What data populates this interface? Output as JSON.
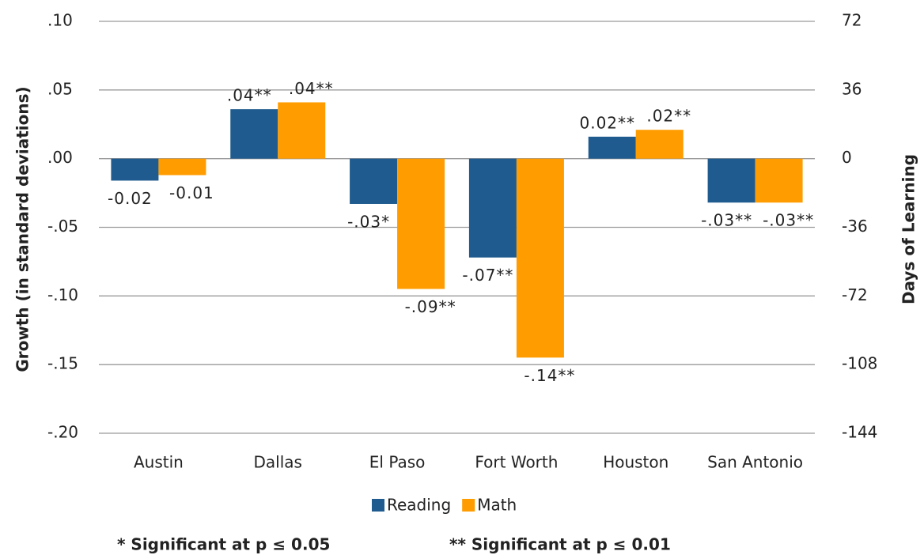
{
  "chart_data": {
    "type": "bar",
    "categories": [
      "Austin",
      "Dallas",
      "El Paso",
      "Fort Worth",
      "Houston",
      "San Antonio"
    ],
    "series": [
      {
        "name": "Reading",
        "color": "#1f5b8e",
        "values": [
          -0.016,
          0.036,
          -0.033,
          -0.072,
          0.016,
          -0.032
        ],
        "value_labels": [
          "-0.02",
          ".04**",
          "-.03*",
          "-.07**",
          "0.02**",
          "-.03**"
        ]
      },
      {
        "name": "Math",
        "color": "#ff9c00",
        "values": [
          -0.012,
          0.041,
          -0.0949,
          -0.1449,
          0.021,
          -0.032
        ],
        "value_labels": [
          "-0.01",
          ".04**",
          "-.09**",
          "-.14**",
          ".02**",
          "-.03**"
        ]
      }
    ],
    "ylabel": "Growth (in standard deviations)",
    "y2label": "Days of Learning",
    "ylim": [
      -0.2,
      0.1
    ],
    "yticks": [
      {
        "value": 0.1,
        "label": ".10"
      },
      {
        "value": 0.05,
        "label": ".05"
      },
      {
        "value": 0,
        "label": ".00"
      },
      {
        "value": -0.05,
        "label": "-.05"
      },
      {
        "value": -0.1,
        "label": "-.10"
      },
      {
        "value": -0.15,
        "label": "-.15"
      },
      {
        "value": -0.2,
        "label": "-.20"
      }
    ],
    "y2lim": [
      -144,
      72
    ],
    "y2ticks": [
      72,
      36,
      0,
      -36,
      -72,
      -108,
      -144
    ],
    "grid": true,
    "legend": "bottom",
    "notes": [
      "* Significant at p ≤ 0.05",
      "** Significant at p ≤ 0.01"
    ]
  }
}
